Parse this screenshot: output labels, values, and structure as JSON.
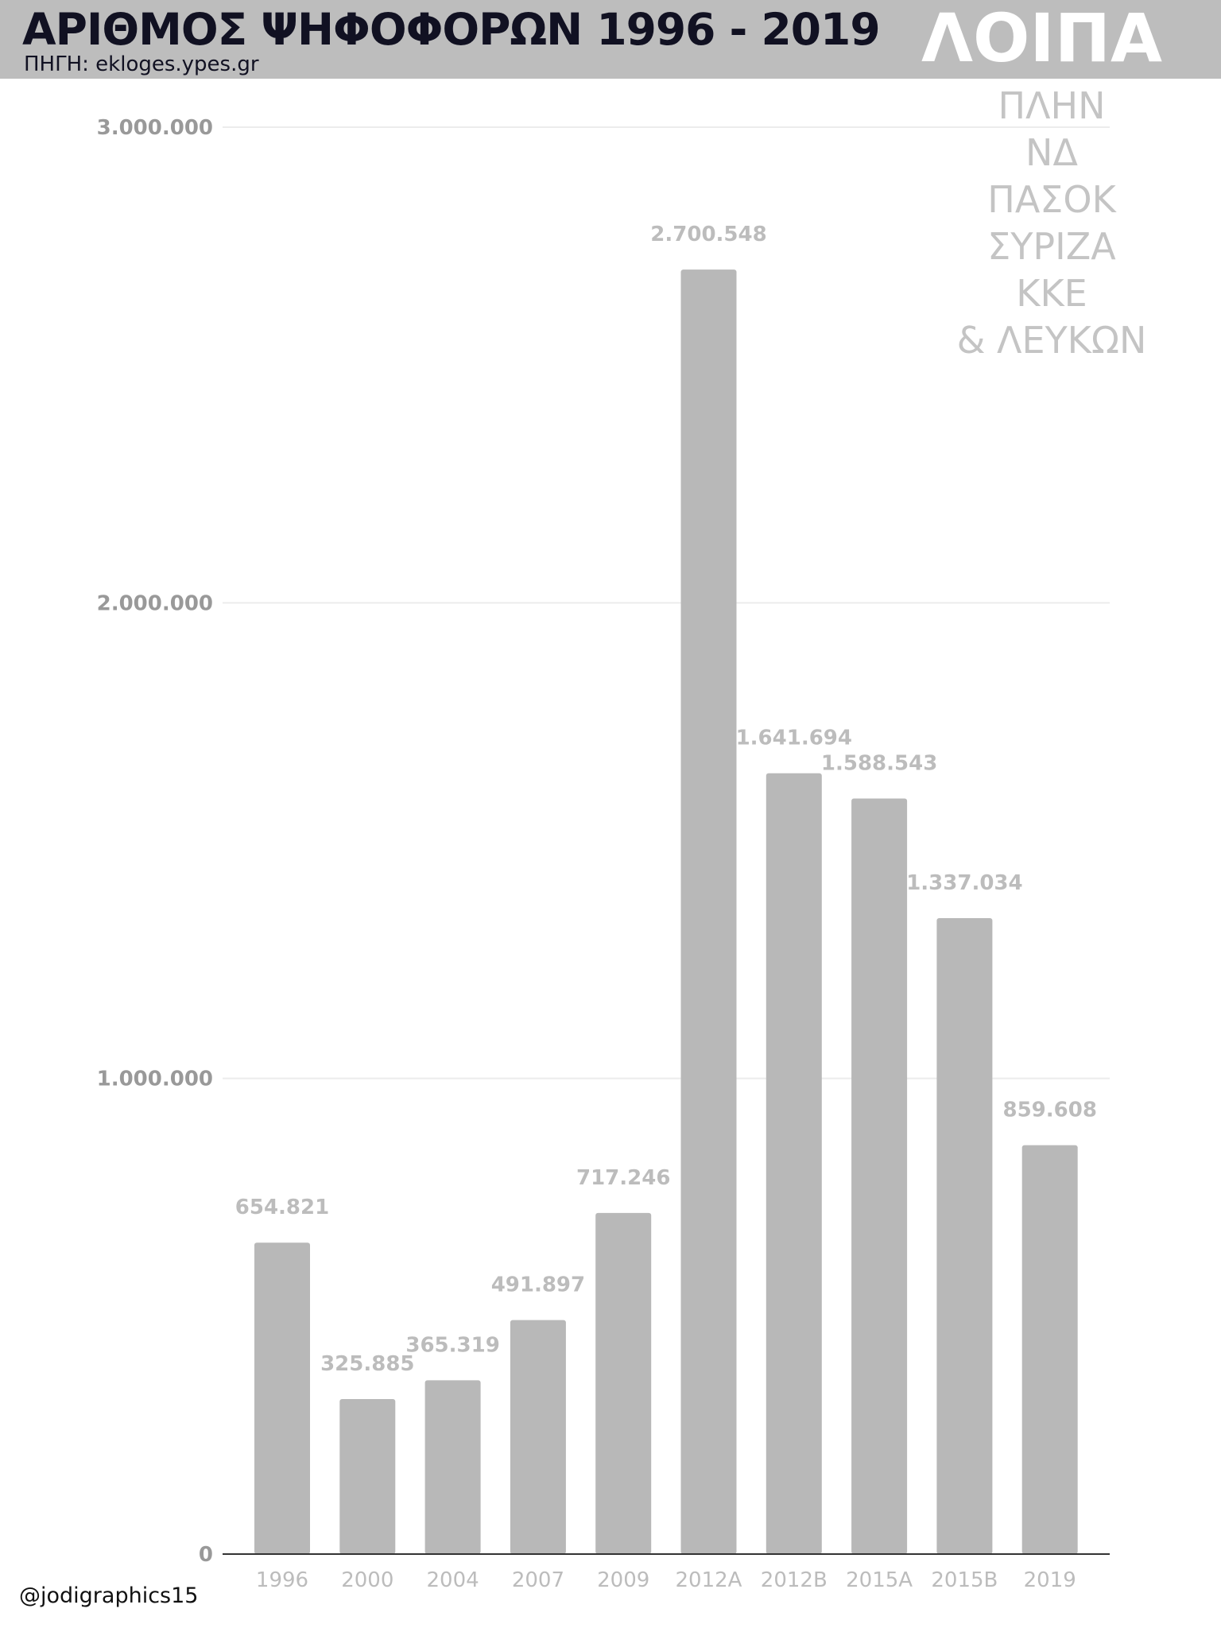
{
  "header": {
    "title": "ΑΡΙΘΜΟΣ ΨΗΦΟΦΟΡΩΝ 1996 - 2019",
    "source": "ΠΗΓΗ: ekloges.ypes.gr",
    "category": "ΛΟΙΠΑ"
  },
  "note": {
    "lines": [
      "ΠΛΗΝ",
      "ΝΔ",
      "ΠΑΣΟΚ",
      "ΣΥΡΙΖΑ",
      "ΚΚΕ",
      "& ΛΕΥΚΩΝ"
    ]
  },
  "footer": {
    "handle": "@jodigraphics15"
  },
  "colors": {
    "bar": "#b8b8b8",
    "label": "#bcbcbc",
    "axis_tick": "#999999",
    "gridline": "#ececec",
    "baseline": "#333333",
    "header_band": "#bdbdbd",
    "title": "#111122"
  },
  "chart_data": {
    "type": "bar",
    "title": "ΑΡΙΘΜΟΣ ΨΗΦΟΦΟΡΩΝ 1996 - 2019",
    "xlabel": "",
    "ylabel": "",
    "categories": [
      "1996",
      "2000",
      "2004",
      "2007",
      "2009",
      "2012Α",
      "2012Β",
      "2015Α",
      "2015Β",
      "2019"
    ],
    "values": [
      654821,
      325885,
      365319,
      491897,
      717246,
      2700548,
      1641694,
      1588543,
      1337034,
      859608
    ],
    "value_labels": [
      "654.821",
      "325.885",
      "365.319",
      "491.897",
      "717.246",
      "2.700.548",
      "1.641.694",
      "1.588.543",
      "1.337.034",
      "859.608"
    ],
    "ylim": [
      0,
      3000000
    ],
    "yticks": [
      0,
      1000000,
      2000000,
      3000000
    ],
    "ytick_labels": [
      "0",
      "1.000.000",
      "2.000.000",
      "3.000.000"
    ],
    "grid": true,
    "legend": "none"
  }
}
